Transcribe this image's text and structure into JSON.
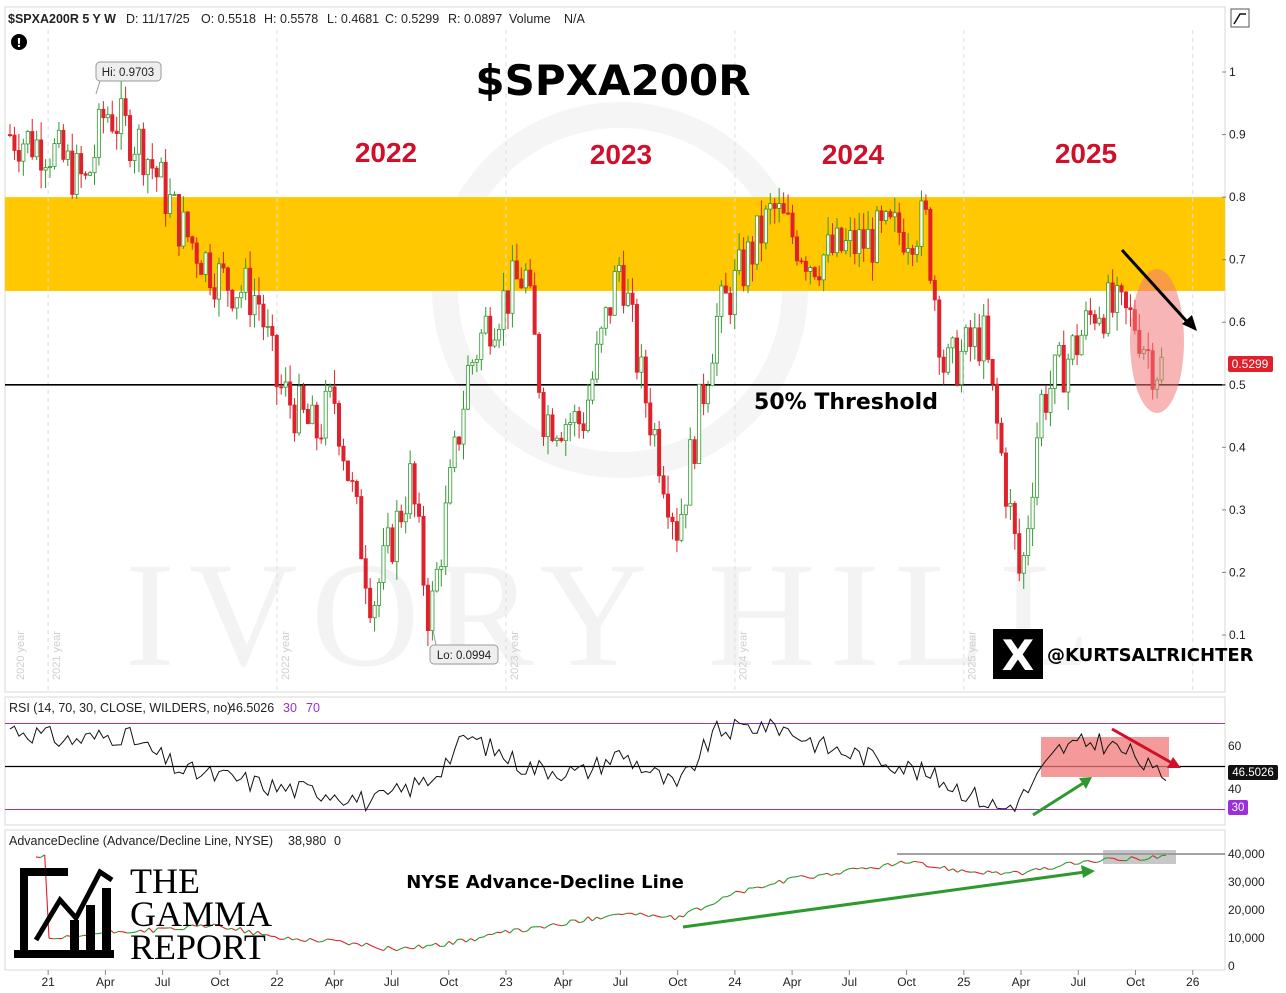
{
  "header": {
    "symbol": "$SPXA200R 5 Y W",
    "date": "D: 11/17/25",
    "open": "O: 0.5518",
    "high": "H: 0.5578",
    "low": "L: 0.4681",
    "close": "C: 0.5299",
    "range": "R: 0.0897",
    "volume": "Volume",
    "volume_value": "N/A"
  },
  "title": "$SPXA200R",
  "year_labels": [
    "2022",
    "2023",
    "2024",
    "2025"
  ],
  "threshold_label": "50% Threshold",
  "hi_label": "Hi: 0.9703",
  "lo_label": "Lo: 0.0994",
  "last_price": "0.5299",
  "watermark": "IVORY HILL",
  "social_handle": "@KURTSALTRICHTER",
  "x_glyph": "X",
  "alert_glyph": "!",
  "vertical_year_labels": [
    "2020 year",
    "2021 year",
    "2022 year",
    "2023 year",
    "2024 year",
    "2025 year"
  ],
  "rsi": {
    "label": "RSI (14, 70, 30, CLOSE, WILDERS, no)",
    "value": "46.5026",
    "level_low": "30",
    "level_high": "70",
    "value_badge": "46.5026",
    "low_badge": "30",
    "ticks": [
      "60",
      "40"
    ]
  },
  "ad": {
    "label": "AdvanceDecline (Advance/Decline Line, NYSE)",
    "value": "38,980",
    "value2": "0",
    "annotation": "NYSE Advance-Decline Line",
    "ticks": [
      "40,000",
      "30,000",
      "20,000",
      "10,000",
      "0"
    ]
  },
  "logo": {
    "line1": "THE",
    "line2": "GAMMA",
    "line3": "REPORT"
  },
  "x_axis": [
    "21",
    "Apr",
    "Jul",
    "Oct",
    "22",
    "Apr",
    "Jul",
    "Oct",
    "23",
    "Apr",
    "Jul",
    "Oct",
    "24",
    "Apr",
    "Jul",
    "Oct",
    "25",
    "Apr",
    "Jul",
    "Oct",
    "26"
  ],
  "y_axis": [
    "1",
    "0.9",
    "0.8",
    "0.7",
    "0.6",
    "0.5",
    "0.4",
    "0.3",
    "0.2",
    "0.1"
  ],
  "colors": {
    "up": "#2e9a2e",
    "down": "#e0202a",
    "zone": "#ffc800",
    "accent": "#d0102a",
    "highlight": "#f07878"
  },
  "chart_data": {
    "type": "candlestick",
    "title": "$SPXA200R",
    "interval": "weekly",
    "ylim": [
      0.03,
      1.07
    ],
    "resistance_zone": [
      0.65,
      0.8
    ],
    "threshold": 0.5,
    "hi": 0.9703,
    "lo": 0.0994,
    "last": {
      "date": "11/17/25",
      "open": 0.5518,
      "high": 0.5578,
      "low": 0.4681,
      "close": 0.5299
    },
    "close_series": {
      "x": [
        "2020-11",
        "2021-01",
        "2021-03",
        "2021-04",
        "2021-06",
        "2021-08",
        "2021-10",
        "2021-12",
        "2022-01",
        "2022-03",
        "2022-04",
        "2022-06",
        "2022-08",
        "2022-09",
        "2022-11",
        "2022-12",
        "2023-02",
        "2023-03",
        "2023-05",
        "2023-07",
        "2023-08",
        "2023-10",
        "2023-12",
        "2024-02",
        "2024-03",
        "2024-05",
        "2024-07",
        "2024-09",
        "2024-11",
        "2024-12",
        "2025-02",
        "2025-04",
        "2025-05",
        "2025-07",
        "2025-08",
        "2025-10",
        "2025-11"
      ],
      "values": [
        0.9,
        0.88,
        0.82,
        0.94,
        0.88,
        0.75,
        0.67,
        0.64,
        0.5,
        0.42,
        0.48,
        0.15,
        0.35,
        0.12,
        0.52,
        0.6,
        0.68,
        0.45,
        0.44,
        0.7,
        0.52,
        0.27,
        0.6,
        0.72,
        0.78,
        0.7,
        0.72,
        0.74,
        0.76,
        0.52,
        0.58,
        0.18,
        0.47,
        0.57,
        0.63,
        0.6,
        0.53
      ]
    },
    "rsi": {
      "period": 14,
      "overbought": 70,
      "oversold": 30,
      "last": 46.5026,
      "x": [
        "2020-11",
        "2021-02",
        "2021-05",
        "2021-08",
        "2021-11",
        "2022-01",
        "2022-04",
        "2022-06",
        "2022-09",
        "2022-11",
        "2023-02",
        "2023-05",
        "2023-07",
        "2023-10",
        "2023-12",
        "2024-03",
        "2024-06",
        "2024-09",
        "2024-12",
        "2025-03",
        "2025-04",
        "2025-06",
        "2025-08",
        "2025-10",
        "2025-11"
      ],
      "values": [
        68,
        62,
        65,
        48,
        44,
        40,
        38,
        33,
        44,
        64,
        50,
        47,
        56,
        40,
        66,
        70,
        58,
        53,
        43,
        30,
        35,
        58,
        62,
        55,
        46.5
      ]
    },
    "advance_decline": {
      "last": 38980,
      "x": [
        "2021-01",
        "2021-04",
        "2021-07",
        "2021-10",
        "2022-01",
        "2022-04",
        "2022-07",
        "2022-10",
        "2023-01",
        "2023-04",
        "2023-07",
        "2023-10",
        "2024-01",
        "2024-04",
        "2024-07",
        "2024-10",
        "2025-01",
        "2025-04",
        "2025-07",
        "2025-10",
        "2025-11"
      ],
      "values": [
        9000,
        12000,
        13000,
        14500,
        10000,
        9000,
        6000,
        8000,
        12000,
        15000,
        19000,
        17000,
        26000,
        31000,
        34000,
        37000,
        34000,
        33000,
        37000,
        38500,
        38980
      ]
    }
  }
}
